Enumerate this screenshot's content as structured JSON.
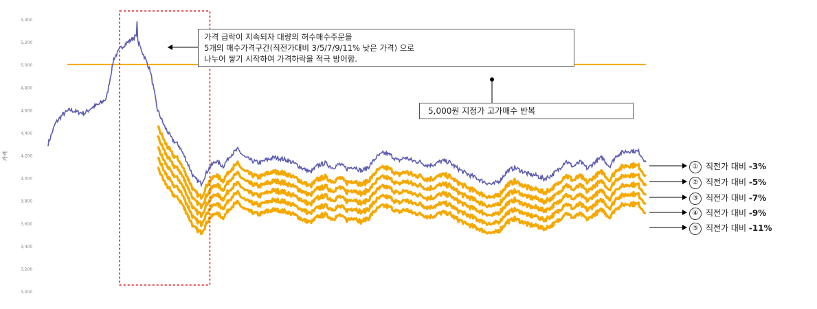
{
  "annotations": {
    "box1_lines": [
      "가격 급락이 지속되자 대량의 허수매수주문을",
      "5개의 매수가격구간(직전가대비 3/5/7/9/11% 낮은 가격) 으로",
      "나누어 쌓기 시작하여 가격하락을 적극 방어함."
    ],
    "box2": "5,000원 지정가 고가매수 반복"
  },
  "legend": [
    {
      "num": "①",
      "label": "직전가 대비",
      "pct": "-3%"
    },
    {
      "num": "②",
      "label": "직전가 대비",
      "pct": "-5%"
    },
    {
      "num": "③",
      "label": "직전가 대비",
      "pct": "-7%"
    },
    {
      "num": "④",
      "label": "직전가 대비",
      "pct": "-9%"
    },
    {
      "num": "⑤",
      "label": "직전가 대비",
      "pct": "-11%"
    }
  ],
  "chart_data": {
    "type": "line",
    "ylabel": "가격",
    "ylim": [
      3000,
      5400
    ],
    "yticks": [
      "3,000",
      "3,200",
      "3,400",
      "3,600",
      "3,800",
      "4,000",
      "4,200",
      "4,400",
      "4,600",
      "4,800",
      "5,000",
      "5,200",
      "5,400"
    ],
    "reference_line": {
      "value": 5000,
      "color": "#f5a800"
    },
    "colors": {
      "price": "#5b5bb0",
      "orders": "#f5a800",
      "highlight": "#e02020"
    },
    "series": [
      {
        "key": "price",
        "points": [
          [
            0,
            4300
          ],
          [
            1,
            4480
          ],
          [
            2,
            4560
          ],
          [
            3,
            4600
          ],
          [
            4,
            4580
          ],
          [
            5,
            4570
          ],
          [
            6,
            4620
          ],
          [
            7,
            4650
          ],
          [
            8,
            4700
          ],
          [
            9,
            5050
          ],
          [
            10,
            5150
          ],
          [
            11,
            5200
          ],
          [
            12,
            5250
          ],
          [
            13,
            5100
          ],
          [
            14,
            4950
          ],
          [
            15,
            4600
          ],
          [
            16,
            4450
          ],
          [
            17,
            4340
          ],
          [
            18,
            4280
          ],
          [
            19,
            4150
          ],
          [
            20,
            4000
          ],
          [
            21,
            3950
          ],
          [
            22,
            4080
          ],
          [
            23,
            4150
          ],
          [
            24,
            4100
          ],
          [
            25,
            4200
          ],
          [
            26,
            4250
          ],
          [
            27,
            4180
          ],
          [
            28,
            4150
          ],
          [
            29,
            4130
          ],
          [
            30,
            4160
          ],
          [
            31,
            4180
          ],
          [
            32,
            4170
          ],
          [
            33,
            4150
          ],
          [
            34,
            4120
          ],
          [
            35,
            4080
          ],
          [
            36,
            4050
          ],
          [
            37,
            4110
          ],
          [
            38,
            4130
          ],
          [
            39,
            4090
          ],
          [
            40,
            4120
          ],
          [
            41,
            4080
          ],
          [
            42,
            4100
          ],
          [
            43,
            4060
          ],
          [
            44,
            4100
          ],
          [
            45,
            4180
          ],
          [
            46,
            4220
          ],
          [
            47,
            4200
          ],
          [
            48,
            4150
          ],
          [
            49,
            4180
          ],
          [
            50,
            4150
          ],
          [
            51,
            4140
          ],
          [
            52,
            4110
          ],
          [
            53,
            4120
          ],
          [
            54,
            4150
          ],
          [
            55,
            4140
          ],
          [
            56,
            4090
          ],
          [
            57,
            4050
          ],
          [
            58,
            4020
          ],
          [
            59,
            3990
          ],
          [
            60,
            3960
          ],
          [
            61,
            3940
          ],
          [
            62,
            3980
          ],
          [
            63,
            4060
          ],
          [
            64,
            4090
          ],
          [
            65,
            4060
          ],
          [
            66,
            4030
          ],
          [
            67,
            4020
          ],
          [
            68,
            3990
          ],
          [
            69,
            4020
          ],
          [
            70,
            4070
          ],
          [
            71,
            4150
          ],
          [
            72,
            4100
          ],
          [
            73,
            4140
          ],
          [
            74,
            4080
          ],
          [
            75,
            4140
          ],
          [
            76,
            4180
          ],
          [
            77,
            4100
          ],
          [
            78,
            4200
          ],
          [
            79,
            4230
          ],
          [
            80,
            4240
          ],
          [
            81,
            4230
          ],
          [
            82,
            4140
          ]
        ]
      },
      {
        "key": "order-3",
        "name": "① 직전가 대비 -3%",
        "offset": 0.03
      },
      {
        "key": "order-5",
        "name": "② 직전가 대비 -5%",
        "offset": 0.05
      },
      {
        "key": "order-7",
        "name": "③ 직전가 대비 -7%",
        "offset": 0.07
      },
      {
        "key": "order-9",
        "name": "④ 직전가 대비 -9%",
        "offset": 0.09
      },
      {
        "key": "order-11",
        "name": "⑤ 직전가 대비 -11%",
        "offset": 0.11
      }
    ],
    "orders_start_x": 15,
    "highlight_x_range": [
      10,
      22
    ]
  }
}
